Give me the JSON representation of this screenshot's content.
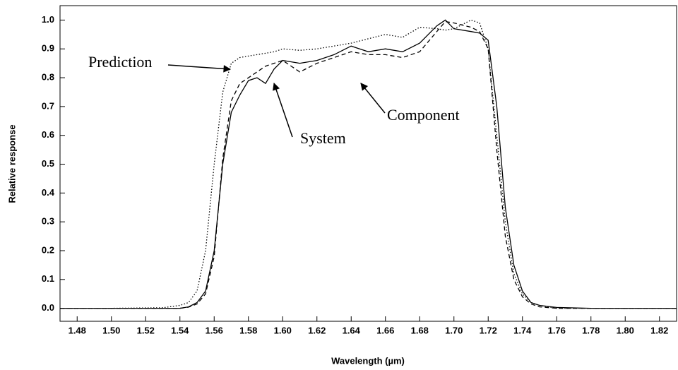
{
  "chart_data": {
    "type": "line",
    "x_label": "Wavelength (µm)",
    "y_label": "Relative response",
    "xlim": [
      1.47,
      1.83
    ],
    "ylim": [
      -0.045,
      1.05
    ],
    "xticks": [
      {
        "value": 1.48,
        "label": "1.48"
      },
      {
        "value": 1.5,
        "label": "1.50"
      },
      {
        "value": 1.52,
        "label": "1.52"
      },
      {
        "value": 1.54,
        "label": "1.54"
      },
      {
        "value": 1.56,
        "label": "1.56"
      },
      {
        "value": 1.58,
        "label": "1.58"
      },
      {
        "value": 1.6,
        "label": "1.60"
      },
      {
        "value": 1.62,
        "label": "1.62"
      },
      {
        "value": 1.64,
        "label": "1.64"
      },
      {
        "value": 1.66,
        "label": "1.66"
      },
      {
        "value": 1.68,
        "label": "1.68"
      },
      {
        "value": 1.7,
        "label": "1.70"
      },
      {
        "value": 1.72,
        "label": "1.72"
      },
      {
        "value": 1.74,
        "label": "1.74"
      },
      {
        "value": 1.76,
        "label": "1.76"
      },
      {
        "value": 1.78,
        "label": "1.78"
      },
      {
        "value": 1.8,
        "label": "1.80"
      },
      {
        "value": 1.82,
        "label": "1.82"
      }
    ],
    "yticks": [
      {
        "value": 0,
        "label": "0.0"
      },
      0.1,
      0.2,
      0.3,
      0.4,
      0.5,
      0.6,
      0.7,
      0.8,
      0.9,
      {
        "value": 1,
        "label": "1.0"
      }
    ],
    "x": [
      1.47,
      1.5,
      1.53,
      1.54,
      1.545,
      1.55,
      1.555,
      1.56,
      1.565,
      1.57,
      1.575,
      1.58,
      1.585,
      1.59,
      1.595,
      1.6,
      1.61,
      1.62,
      1.63,
      1.64,
      1.65,
      1.66,
      1.67,
      1.68,
      1.69,
      1.695,
      1.7,
      1.71,
      1.715,
      1.72,
      1.725,
      1.73,
      1.735,
      1.74,
      1.745,
      1.75,
      1.76,
      1.78,
      1.83
    ],
    "series": [
      {
        "name": "Prediction",
        "color": "#000",
        "dash": "1.5 2.5",
        "values": [
          0,
          0,
          0.002,
          0.01,
          0.02,
          0.06,
          0.2,
          0.5,
          0.75,
          0.85,
          0.87,
          0.875,
          0.88,
          0.885,
          0.89,
          0.9,
          0.895,
          0.9,
          0.91,
          0.92,
          0.935,
          0.95,
          0.94,
          0.975,
          0.97,
          0.965,
          0.97,
          1.0,
          0.99,
          0.9,
          0.6,
          0.3,
          0.12,
          0.05,
          0.02,
          0.01,
          0,
          0,
          0
        ]
      },
      {
        "name": "System",
        "color": "#000",
        "dash": "none",
        "values": [
          0,
          0,
          0,
          0,
          0.005,
          0.02,
          0.06,
          0.2,
          0.5,
          0.68,
          0.74,
          0.79,
          0.8,
          0.78,
          0.83,
          0.86,
          0.85,
          0.86,
          0.88,
          0.91,
          0.89,
          0.9,
          0.89,
          0.92,
          0.98,
          1.0,
          0.97,
          0.96,
          0.955,
          0.93,
          0.7,
          0.35,
          0.15,
          0.06,
          0.02,
          0.01,
          0.003,
          0,
          0
        ]
      },
      {
        "name": "Component",
        "color": "#000",
        "dash": "6 4",
        "values": [
          0,
          0,
          0,
          0,
          0.004,
          0.015,
          0.05,
          0.18,
          0.52,
          0.72,
          0.78,
          0.8,
          0.82,
          0.84,
          0.85,
          0.86,
          0.82,
          0.85,
          0.87,
          0.89,
          0.88,
          0.88,
          0.87,
          0.89,
          0.96,
          0.995,
          0.99,
          0.975,
          0.96,
          0.9,
          0.55,
          0.25,
          0.1,
          0.04,
          0.015,
          0.005,
          0,
          0,
          0
        ]
      }
    ]
  }
}
